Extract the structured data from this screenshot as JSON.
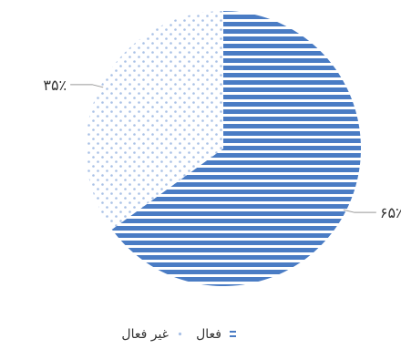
{
  "chart_data": {
    "type": "pie",
    "categories": [
      "فعال",
      "غیر فعال"
    ],
    "values": [
      65,
      35
    ],
    "data_labels": [
      "۶۵٪",
      "۳۵٪"
    ],
    "legend": [
      "فعال",
      "غیر فعال"
    ],
    "legend_position": "bottom",
    "colors": {
      "فعال": "#4a7cc4",
      "غیر فعال": "#a9c1e6"
    },
    "patterns": {
      "فعال": "horizontal-stripes",
      "غیر فعال": "dots"
    }
  }
}
